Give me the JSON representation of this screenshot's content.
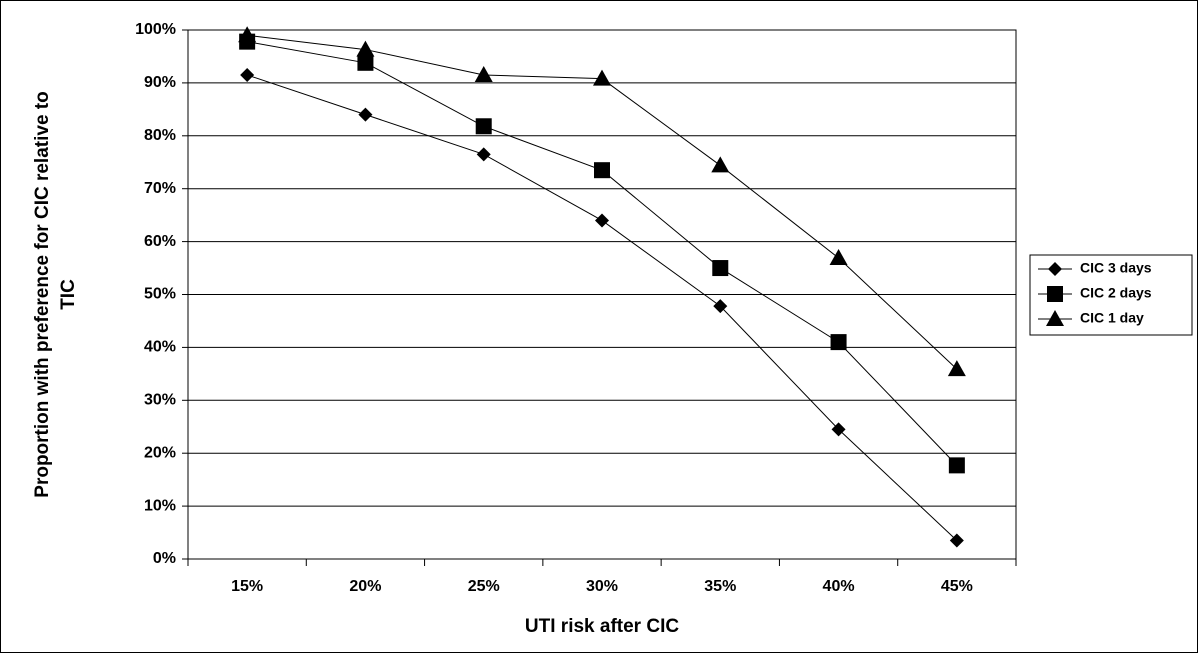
{
  "chart_data": {
    "type": "line",
    "x_label": "UTI risk after CIC",
    "y_label": "Proportion with preference for CIC relative to TIC",
    "categories": [
      "15%",
      "20%",
      "25%",
      "30%",
      "35%",
      "40%",
      "45%"
    ],
    "series": [
      {
        "name": "CIC 3 days",
        "color": "#000000",
        "marker": "diamond",
        "values": [
          91.5,
          84,
          76.5,
          64,
          47.8,
          24.5,
          3.5
        ]
      },
      {
        "name": "CIC 2 days",
        "color": "#000000",
        "marker": "square",
        "values": [
          97.8,
          93.8,
          81.8,
          73.5,
          55,
          41,
          17.7
        ]
      },
      {
        "name": "CIC 1 day",
        "color": "#000000",
        "marker": "triangle",
        "values": [
          99,
          96.3,
          91.5,
          90.8,
          74.4,
          56.9,
          35.9
        ]
      }
    ],
    "ylim": [
      0,
      100
    ],
    "yticks": [
      {
        "value": 0,
        "label": "0%"
      },
      {
        "value": 10,
        "label": "10%"
      },
      {
        "value": 20,
        "label": "20%"
      },
      {
        "value": 30,
        "label": "30%"
      },
      {
        "value": 40,
        "label": "40%"
      },
      {
        "value": 50,
        "label": "50%"
      },
      {
        "value": 60,
        "label": "60%"
      },
      {
        "value": 70,
        "label": "70%"
      },
      {
        "value": 80,
        "label": "80%"
      },
      {
        "value": 90,
        "label": "90%"
      },
      {
        "value": 100,
        "label": "100%"
      }
    ],
    "grid": true,
    "legend": "right"
  }
}
